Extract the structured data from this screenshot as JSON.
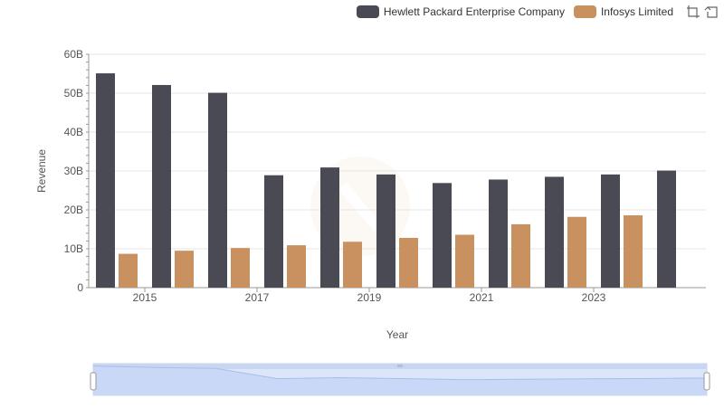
{
  "chart_data": {
    "type": "bar",
    "title": "",
    "xlabel": "Year",
    "ylabel": "Revenue",
    "ylim": [
      0,
      60
    ],
    "yticks": [
      "0",
      "10B",
      "20B",
      "30B",
      "40B",
      "50B",
      "60B"
    ],
    "x_tick_labels": [
      "2015",
      "2017",
      "2019",
      "2021",
      "2023"
    ],
    "categories": [
      "2014",
      "2015",
      "2016",
      "2017",
      "2018",
      "2019",
      "2020",
      "2021",
      "2022",
      "2023",
      "2024"
    ],
    "series": [
      {
        "name": "Hewlett Packard Enterprise Company",
        "color": "#4a4a55",
        "values": [
          55.1,
          52.1,
          50.1,
          28.9,
          30.9,
          29.1,
          26.9,
          27.8,
          28.5,
          29.1,
          30.1
        ]
      },
      {
        "name": "Infosys Limited",
        "color": "#c8915f",
        "values": [
          8.7,
          9.5,
          10.2,
          10.9,
          11.8,
          12.8,
          13.6,
          16.3,
          18.2,
          18.6,
          null
        ]
      }
    ],
    "legend_position": "top-right",
    "grid": true
  },
  "toolbar": {
    "icons": [
      "zoom-icon",
      "reset-zoom-icon"
    ]
  }
}
